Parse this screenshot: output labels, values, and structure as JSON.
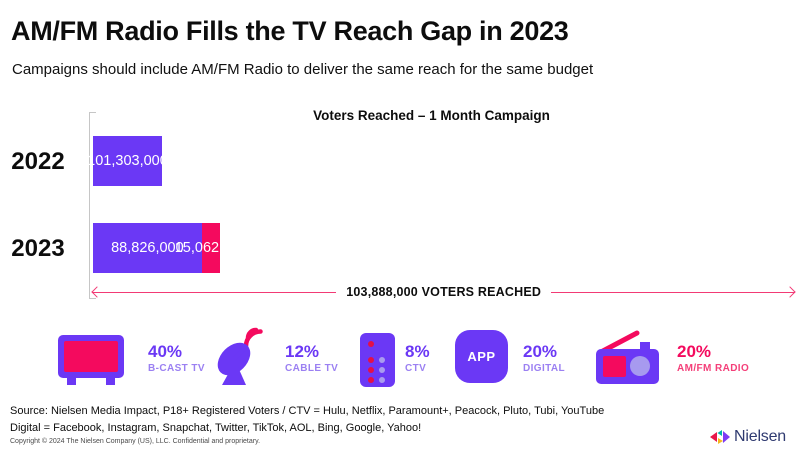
{
  "header": {
    "title": "AM/FM Radio Fills the TV Reach Gap in 2023",
    "subtitle": "Campaigns should include AM/FM Radio to deliver the same reach for the same budget"
  },
  "chart_data": {
    "type": "bar",
    "orientation": "horizontal",
    "title": "Voters Reached – 1 Month Campaign",
    "categories": [
      "2022",
      "2023"
    ],
    "series": [
      {
        "name": "TV",
        "color": "#6B38F5",
        "values": [
          101303000,
          88826000
        ]
      },
      {
        "name": "AM/FM Radio",
        "color": "#F40A5E",
        "values": [
          0,
          15062000
        ]
      }
    ],
    "labels": {
      "bar_2022": "101,303,000",
      "bar_2023_tv": "88,826,000",
      "bar_2023_radio": "15,062,000"
    },
    "total_annotation": "103,888,000 VOTERS REACHED",
    "xlim": [
      0,
      118500000
    ],
    "grid": false,
    "legend": false
  },
  "media_stats": [
    {
      "icon": "tv-icon",
      "percent": "40%",
      "label": "B-CAST TV"
    },
    {
      "icon": "satellite-dish-icon",
      "percent": "12%",
      "label": "CABLE TV"
    },
    {
      "icon": "ctv-remote-icon",
      "percent": "8%",
      "label": "CTV"
    },
    {
      "icon": "app-icon",
      "icon_text": "APP",
      "percent": "20%",
      "label": "DIGITAL"
    },
    {
      "icon": "radio-icon",
      "percent": "20%",
      "label": "AM/FM RADIO"
    }
  ],
  "footer": {
    "source_line1": "Source: Nielsen Media Impact, P18+ Registered Voters / CTV = Hulu, Netflix, Paramount+, Peacock, Pluto, Tubi, YouTube",
    "source_line2": "Digital = Facebook, Instagram, Snapchat, Twitter, TikTok, AOL, Bing, Google, Yahoo!",
    "copyright": "Copyright © 2024 The Nielsen Company (US), LLC. Confidential and proprietary.",
    "brand": "Nielsen"
  },
  "colors": {
    "purple": "#6B38F5",
    "pink": "#F40A5E",
    "arrow_pink": "#F23A75",
    "label_purple": "#9B80F2",
    "navy": "#2F3A70"
  }
}
